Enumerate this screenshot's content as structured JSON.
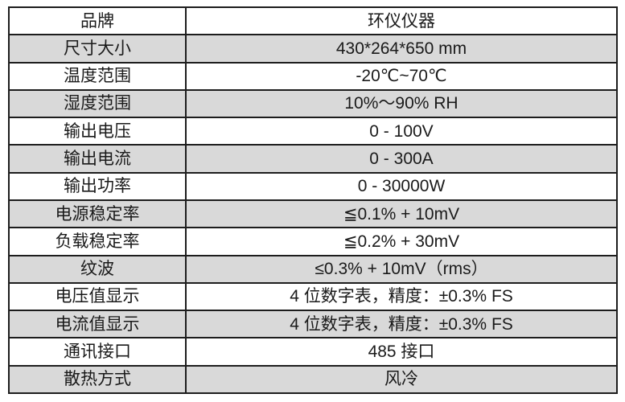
{
  "page": {
    "background": "#ffffff"
  },
  "table": {
    "border_color": "#1d1d1d",
    "alt_row_color": "#d9d9d9",
    "text_color": "#1a1a1a",
    "rows": [
      {
        "label": "品牌",
        "value": "环仪仪器"
      },
      {
        "label": "尺寸大小",
        "value": "430*264*650 mm"
      },
      {
        "label": "温度范围",
        "value": "-20℃~70℃"
      },
      {
        "label": "湿度范围",
        "value": "10%～90% RH"
      },
      {
        "label": "输出电压",
        "value": "0 - 100V"
      },
      {
        "label": "输出电流",
        "value": "0 - 300A"
      },
      {
        "label": "输出功率",
        "value": "0 - 30000W"
      },
      {
        "label": "电源稳定率",
        "value": "≦0.1% + 10mV"
      },
      {
        "label": "负载稳定率",
        "value": "≦0.2% + 30mV"
      },
      {
        "label": "纹波",
        "value": "≤0.3% + 10mV（rms）"
      },
      {
        "label": "电压值显示",
        "value": "4 位数字表，精度：±0.3% FS"
      },
      {
        "label": "电流值显示",
        "value": "4 位数字表，精度：±0.3% FS"
      },
      {
        "label": "通讯接口",
        "value": "485 接口"
      },
      {
        "label": "散热方式",
        "value": "风冷"
      }
    ]
  }
}
